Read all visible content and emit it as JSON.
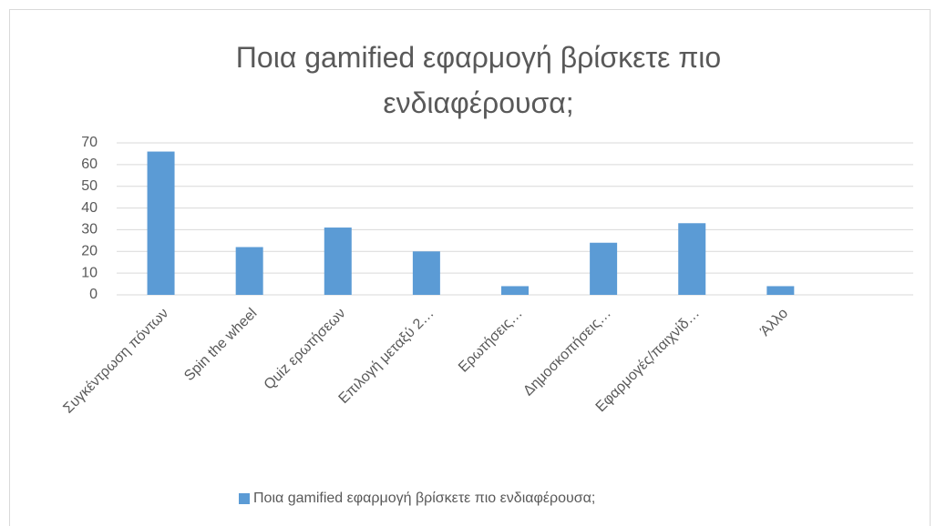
{
  "chart_data": {
    "type": "bar",
    "title": "Ποια gamified εφαρμογή βρίσκετε πιο ενδιαφέρουσα;",
    "categories": [
      "Συγκέντρωση πόντων",
      "Spin the wheel",
      "Quiz ερωτήσεων",
      "Επιλογή μεταξύ 2…",
      "Ερωτήσεις…",
      "Δημοσκοπήσεις…",
      "Εφαρμογές/παιχνίδ…",
      "Άλλο",
      null
    ],
    "series": [
      {
        "name": "Ποια gamified εφαρμογή βρίσκετε πιο ενδιαφέρουσα;",
        "color": "#5b9bd5",
        "values": [
          66,
          22,
          31,
          20,
          4,
          24,
          33,
          4,
          null
        ]
      }
    ],
    "ylim": [
      0,
      70
    ],
    "yticks": [
      0,
      10,
      20,
      30,
      40,
      50,
      60,
      70
    ],
    "grid": true,
    "legend": "bottom"
  }
}
